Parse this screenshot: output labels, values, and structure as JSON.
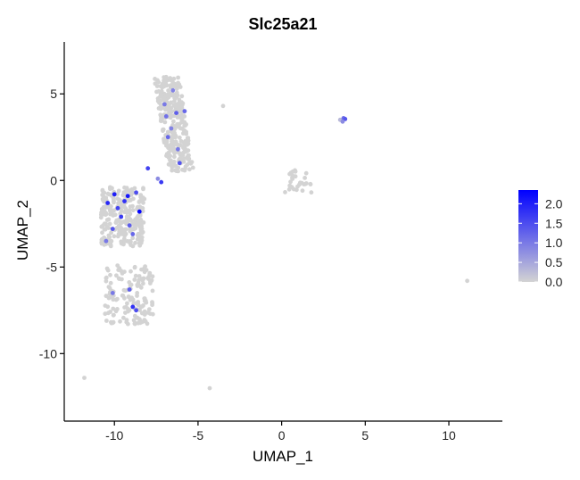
{
  "chart_data": {
    "type": "scatter",
    "title": "Slc25a21",
    "xlabel": "UMAP_1",
    "ylabel": "UMAP_2",
    "xlim": [
      -13,
      13.2
    ],
    "ylim": [
      -13.9,
      8
    ],
    "x_ticks": [
      -10,
      -5,
      0,
      5,
      10
    ],
    "y_ticks": [
      5,
      0,
      -5,
      -10
    ],
    "grid": false,
    "color_scale": {
      "low_color": "#d3d3d3",
      "high_color": "#0000ff",
      "min": 0.0,
      "max": 2.35,
      "ticks": [
        0.0,
        0.5,
        1.0,
        1.5,
        2.0
      ],
      "tick_labels": [
        "0.0",
        "0.5",
        "1.0",
        "1.5",
        "2.0"
      ],
      "legend_position": "right"
    },
    "clusters": [
      {
        "name": "upper_band",
        "description": "dense vertical band of cells",
        "y_range": [
          0.5,
          6.0
        ],
        "x_center_top": -6.9,
        "x_center_bottom": -6.0,
        "width": 1.5,
        "approx_points": 320
      },
      {
        "name": "left_cluster",
        "y_range": [
          -3.8,
          -0.3
        ],
        "x_range": [
          -10.8,
          -8.2
        ],
        "approx_points": 260
      },
      {
        "name": "lower_left_cluster",
        "y_range": [
          -8.3,
          -4.9
        ],
        "x_range": [
          -10.6,
          -7.7
        ],
        "approx_points": 150
      },
      {
        "name": "right_small_cluster",
        "x_range": [
          0.2,
          1.8
        ],
        "y_range": [
          -0.7,
          0.7
        ],
        "approx_points": 30
      }
    ],
    "points": [
      {
        "x": -11.8,
        "y": -11.4,
        "value": 0.0
      },
      {
        "x": -4.3,
        "y": -12.0,
        "value": 0.0
      },
      {
        "x": -3.5,
        "y": 4.3,
        "value": 0.0
      },
      {
        "x": 11.1,
        "y": -5.8,
        "value": 0.0
      },
      {
        "x": 3.5,
        "y": 3.5,
        "value": 0.3
      },
      {
        "x": 3.7,
        "y": 3.6,
        "value": 1.1
      },
      {
        "x": 3.8,
        "y": 3.55,
        "value": 1.4
      },
      {
        "x": 3.65,
        "y": 3.4,
        "value": 0.8
      },
      {
        "x": -10.0,
        "y": -0.8,
        "value": 2.0
      },
      {
        "x": -9.2,
        "y": -0.9,
        "value": 2.1
      },
      {
        "x": -8.5,
        "y": -1.8,
        "value": 2.3
      },
      {
        "x": -8.7,
        "y": -0.7,
        "value": 1.5
      },
      {
        "x": -10.4,
        "y": -1.3,
        "value": 1.9
      },
      {
        "x": -9.6,
        "y": -2.1,
        "value": 1.7
      },
      {
        "x": -9.8,
        "y": -1.6,
        "value": 1.6
      },
      {
        "x": -10.1,
        "y": -2.8,
        "value": 1.4
      },
      {
        "x": -8.9,
        "y": -3.1,
        "value": 1.2
      },
      {
        "x": -9.4,
        "y": -1.2,
        "value": 1.8
      },
      {
        "x": -9.1,
        "y": -2.6,
        "value": 1.3
      },
      {
        "x": -10.5,
        "y": -3.5,
        "value": 1.0
      },
      {
        "x": -8.9,
        "y": -7.3,
        "value": 1.8
      },
      {
        "x": -8.7,
        "y": -7.5,
        "value": 1.5
      },
      {
        "x": -9.1,
        "y": -6.3,
        "value": 1.3
      },
      {
        "x": -10.1,
        "y": -6.5,
        "value": 1.0
      },
      {
        "x": -8.0,
        "y": 0.7,
        "value": 1.6
      },
      {
        "x": -7.2,
        "y": -0.1,
        "value": 1.7
      },
      {
        "x": -6.8,
        "y": 2.5,
        "value": 1.2
      },
      {
        "x": -6.1,
        "y": 1.0,
        "value": 1.4
      },
      {
        "x": -6.9,
        "y": 3.7,
        "value": 1.1
      },
      {
        "x": -6.3,
        "y": 3.9,
        "value": 1.3
      },
      {
        "x": -5.8,
        "y": 4.0,
        "value": 1.2
      },
      {
        "x": -6.5,
        "y": 5.2,
        "value": 0.9
      },
      {
        "x": -6.2,
        "y": 1.8,
        "value": 1.0
      },
      {
        "x": -7.0,
        "y": 4.4,
        "value": 1.0
      },
      {
        "x": -6.6,
        "y": 3.0,
        "value": 0.9
      },
      {
        "x": -7.4,
        "y": 0.1,
        "value": 0.8
      }
    ]
  }
}
